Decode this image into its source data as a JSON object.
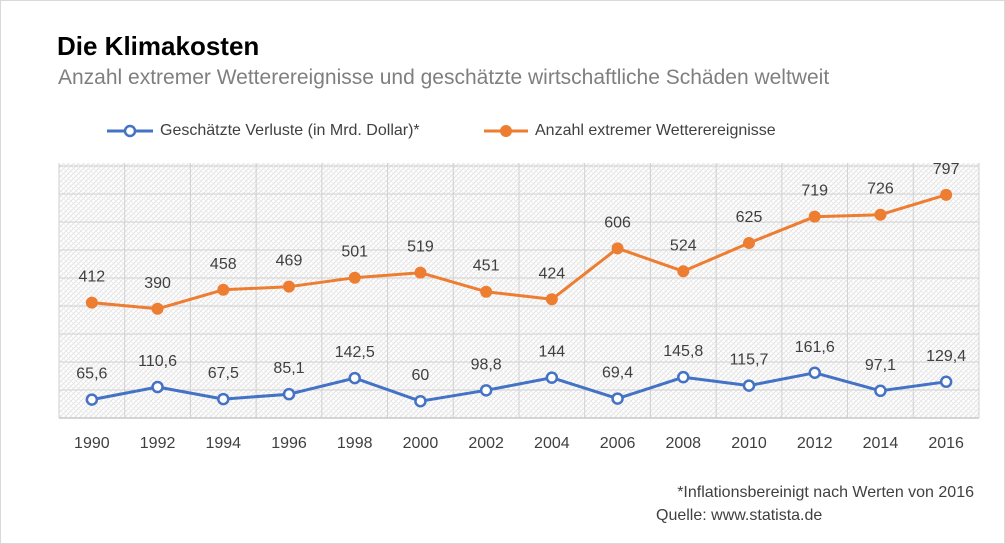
{
  "chart_data": {
    "type": "line",
    "title": "Die Klimakosten",
    "subtitle": "Anzahl extremer Wetterereignisse und geschätzte wirtschaftliche Schäden weltweit",
    "categories": [
      "1990",
      "1992",
      "1994",
      "1996",
      "1998",
      "2000",
      "2002",
      "2004",
      "2006",
      "2008",
      "2010",
      "2012",
      "2014",
      "2016"
    ],
    "ylim": [
      0,
      900
    ],
    "ygrid_step": 100,
    "grid": true,
    "yticks_visible": false,
    "legend_position": "top",
    "series": [
      {
        "name": "Geschätzte Verluste (in Mrd. Dollar)*",
        "color": "#4472C4",
        "marker": "open-circle",
        "values": [
          65.6,
          110.6,
          67.5,
          85.1,
          142.5,
          60,
          98.8,
          144,
          69.4,
          145.8,
          115.7,
          161.6,
          97.1,
          129.4
        ],
        "data_labels": [
          "65,6",
          "110,6",
          "67,5",
          "85,1",
          "142,5",
          "60",
          "98,8",
          "144",
          "69,4",
          "145,8",
          "115,7",
          "161,6",
          "97,1",
          "129,4"
        ]
      },
      {
        "name": "Anzahl extremer Wetterereignisse",
        "color": "#ED7D31",
        "marker": "filled-circle",
        "values": [
          412,
          390,
          458,
          469,
          501,
          519,
          451,
          424,
          606,
          524,
          625,
          719,
          726,
          797
        ],
        "data_labels": [
          "412",
          "390",
          "458",
          "469",
          "501",
          "519",
          "451",
          "424",
          "606",
          "524",
          "625",
          "719",
          "726",
          "797"
        ]
      }
    ]
  },
  "footnote": "*Inflationsbereinigt nach Werten von 2016",
  "source": "Quelle: www.statista.de"
}
